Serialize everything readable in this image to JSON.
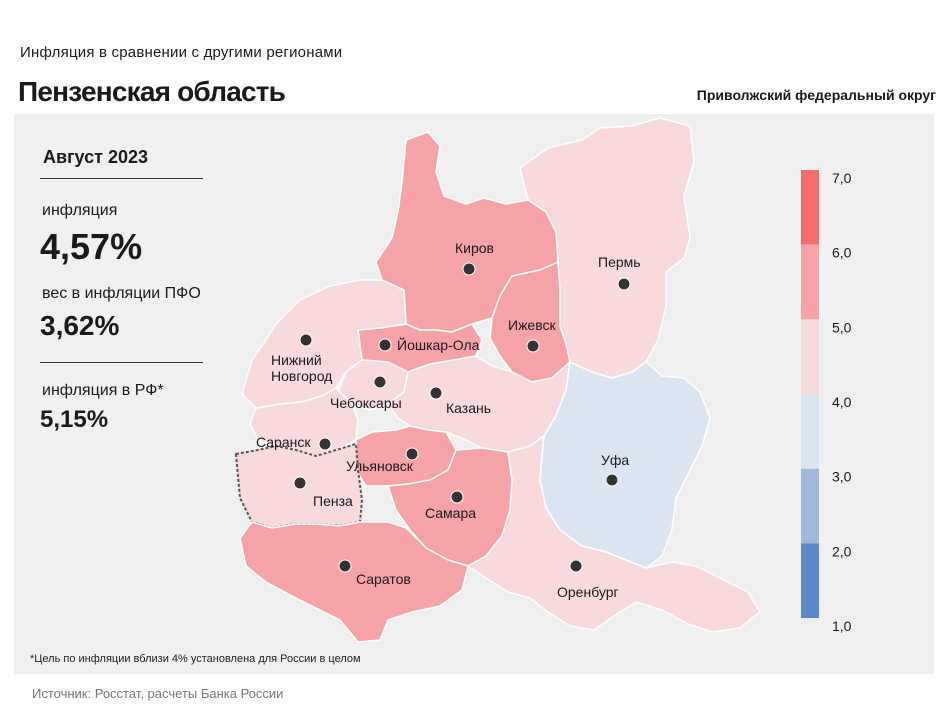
{
  "header": {
    "subtitle": "Инфляция в сравнении с другими регионами",
    "title": "Пензенская область",
    "district": "Приволжский федеральный округ"
  },
  "stats": {
    "period": "Август 2023",
    "inflation_label": "инфляция",
    "inflation_value": "4,57%",
    "weight_label": "вес в инфляции ПФО",
    "weight_value": "3,62%",
    "rf_label": "инфляция в РФ*",
    "rf_value": "5,15%"
  },
  "footnote": "*Цель по инфляции вблизи 4% установлена для России в целом",
  "source": "Источник: Росстат, расчеты Банка России",
  "legend": {
    "ticks": [
      "7,0",
      "6,0",
      "5,0",
      "4,0",
      "3,0",
      "2,0",
      "1,0"
    ],
    "bins": [
      {
        "from": 6.0,
        "to": 7.0,
        "color": "#f26d6d"
      },
      {
        "from": 5.0,
        "to": 6.0,
        "color": "#f5a3a6"
      },
      {
        "from": 4.0,
        "to": 5.0,
        "color": "#f8d9dc"
      },
      {
        "from": 3.0,
        "to": 4.0,
        "color": "#dbe5f2"
      },
      {
        "from": 2.0,
        "to": 3.0,
        "color": "#9fb9dd"
      },
      {
        "from": 1.0,
        "to": 2.0,
        "color": "#5b8ac8"
      }
    ]
  },
  "map": {
    "highlighted_region": "Пенза",
    "cities": [
      "Киров",
      "Пермь",
      "Ижевск",
      "Йошкар-Ола",
      "Нижний Новгород",
      "Чебоксары",
      "Казань",
      "Саранск",
      "Ульяновск",
      "Пенза",
      "Самара",
      "Уфа",
      "Саратов",
      "Оренбург"
    ],
    "city_label_lines": {
      "Нижний Новгород": [
        "Нижний",
        "Новгород"
      ]
    },
    "region_colors": {
      "Киров": "#f5a3a6",
      "Пермь": "#f8d9dc",
      "Ижевск": "#f5a3a6",
      "Йошкар-Ола": "#f5a3a6",
      "Нижний Новгород": "#f8d9dc",
      "Чебоксары": "#f8d9dc",
      "Казань": "#f8d9dc",
      "Саранск": "#f8d9dc",
      "Ульяновск": "#f5a3a6",
      "Пенза": "#f8d9dc",
      "Самара": "#f5a3a6",
      "Уфа": "#dbe5f2",
      "Саратов": "#f5a3a6",
      "Оренбург": "#f8d9dc"
    }
  }
}
